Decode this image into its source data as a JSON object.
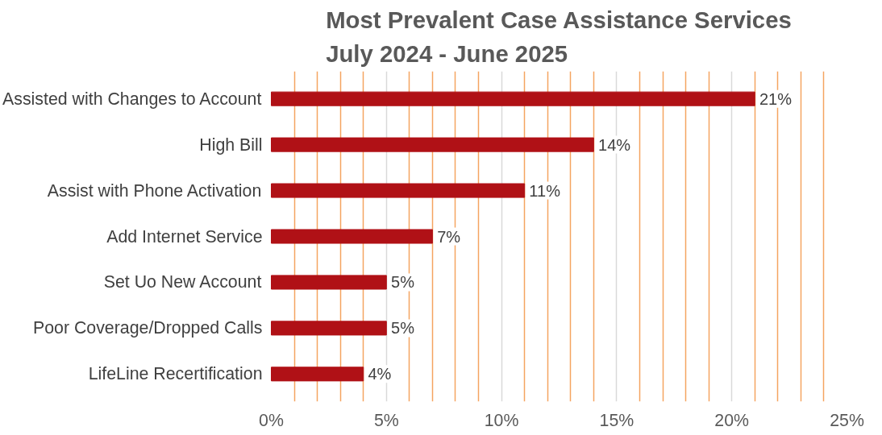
{
  "chart_data": {
    "type": "bar",
    "orientation": "horizontal",
    "title": "Most Prevalent Case Assistance Services\nJuly 2024 - June 2025",
    "categories": [
      "Assisted with Changes to Account",
      "High Bill",
      "Assist with Phone Activation",
      "Add Internet Service",
      "Set Uo New Account",
      "Poor Coverage/Dropped Calls",
      "LifeLine Recertification"
    ],
    "values": [
      21,
      14,
      11,
      7,
      5,
      5,
      4
    ],
    "value_labels": [
      "21%",
      "14%",
      "11%",
      "7%",
      "5%",
      "5%",
      "4%"
    ],
    "color": "#b01116",
    "xlim": [
      0,
      25
    ],
    "xticks": [
      {
        "value": 0,
        "label": "0%"
      },
      {
        "value": 1,
        "label": null
      },
      {
        "value": 2,
        "label": null
      },
      {
        "value": 3,
        "label": null
      },
      {
        "value": 4,
        "label": null
      },
      {
        "value": 5,
        "label": "5%"
      },
      {
        "value": 6,
        "label": null
      },
      {
        "value": 7,
        "label": null
      },
      {
        "value": 8,
        "label": null
      },
      {
        "value": 9,
        "label": null
      },
      {
        "value": 10,
        "label": "10%"
      },
      {
        "value": 11,
        "label": null
      },
      {
        "value": 12,
        "label": null
      },
      {
        "value": 13,
        "label": null
      },
      {
        "value": 14,
        "label": null
      },
      {
        "value": 15,
        "label": "15%"
      },
      {
        "value": 16,
        "label": null
      },
      {
        "value": 17,
        "label": null
      },
      {
        "value": 18,
        "label": null
      },
      {
        "value": 19,
        "label": null
      },
      {
        "value": 20,
        "label": "20%"
      },
      {
        "value": 21,
        "label": null
      },
      {
        "value": 22,
        "label": null
      },
      {
        "value": 23,
        "label": null
      },
      {
        "value": 24,
        "label": null
      },
      {
        "value": 25,
        "label": "25%"
      }
    ],
    "grid": "x"
  }
}
